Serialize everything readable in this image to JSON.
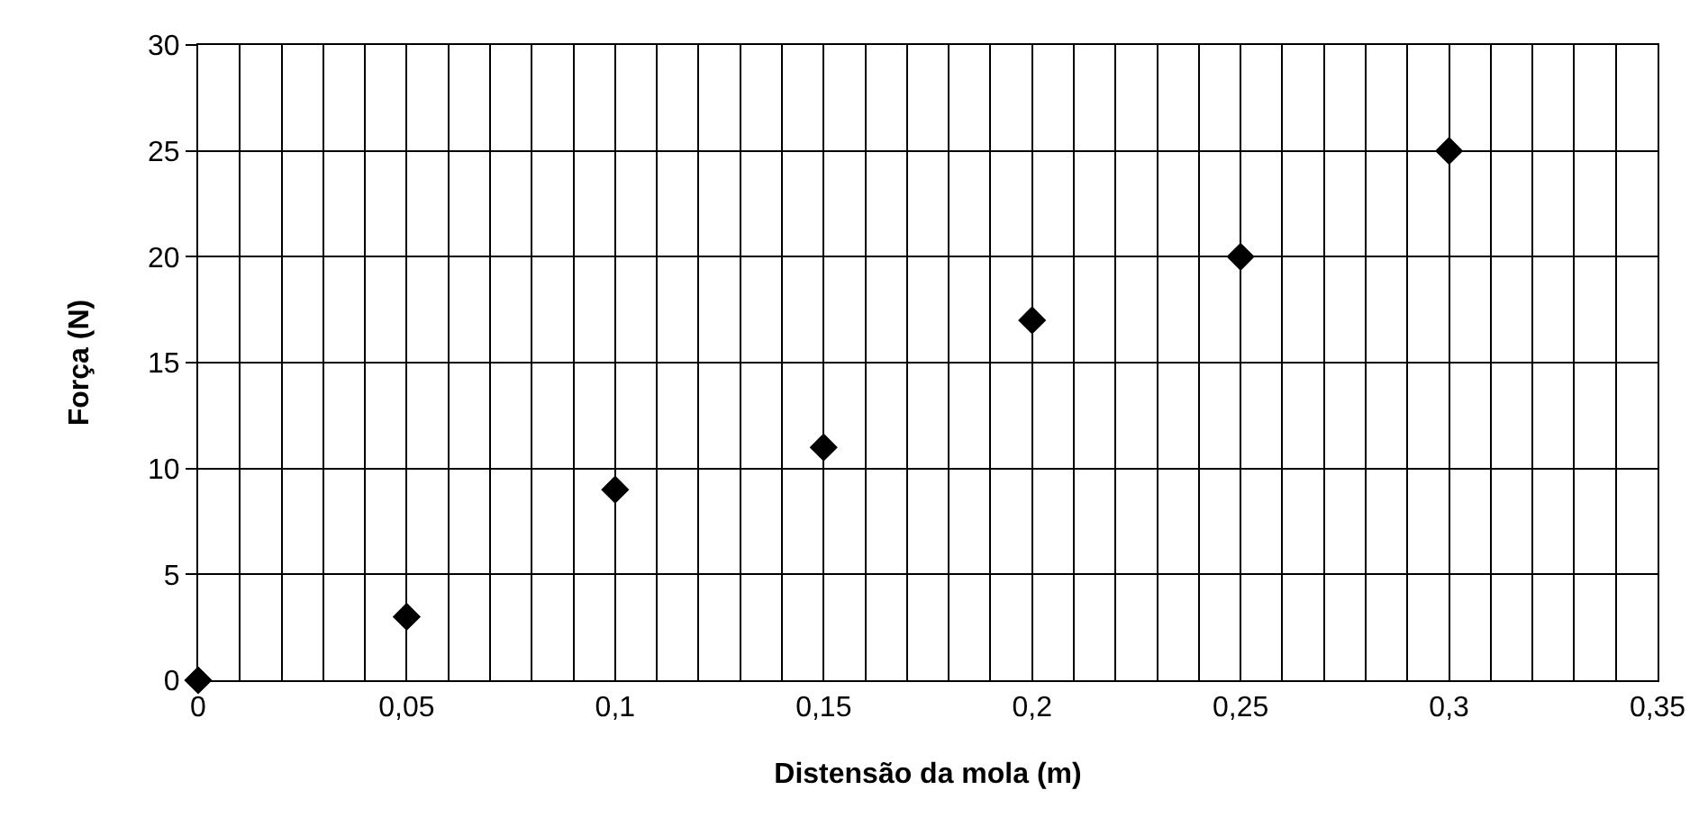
{
  "chart_data": {
    "type": "scatter",
    "xlabel": "Distensão da mola (m)",
    "ylabel": "Força (N)",
    "x": [
      0,
      0.05,
      0.1,
      0.15,
      0.2,
      0.25,
      0.3
    ],
    "values": [
      0,
      3,
      9,
      11,
      17,
      20,
      25
    ],
    "color": "#000000",
    "marker": "diamond",
    "grid": true,
    "xlim": [
      0,
      0.35
    ],
    "xticks": [
      0,
      {
        "value": 0.01,
        "label": null
      },
      {
        "value": 0.02,
        "label": null
      },
      {
        "value": 0.03,
        "label": null
      },
      {
        "value": 0.04,
        "label": null
      },
      {
        "value": 0.05,
        "label": "0,05"
      },
      {
        "value": 0.06,
        "label": null
      },
      {
        "value": 0.07,
        "label": null
      },
      {
        "value": 0.08,
        "label": null
      },
      {
        "value": 0.09,
        "label": null
      },
      {
        "value": 0.1,
        "label": "0,1"
      },
      {
        "value": 0.11,
        "label": null
      },
      {
        "value": 0.12,
        "label": null
      },
      {
        "value": 0.13,
        "label": null
      },
      {
        "value": 0.14,
        "label": null
      },
      {
        "value": 0.15,
        "label": "0,15"
      },
      {
        "value": 0.16,
        "label": null
      },
      {
        "value": 0.17,
        "label": null
      },
      {
        "value": 0.18,
        "label": null
      },
      {
        "value": 0.19,
        "label": null
      },
      {
        "value": 0.2,
        "label": "0,2"
      },
      {
        "value": 0.21,
        "label": null
      },
      {
        "value": 0.22,
        "label": null
      },
      {
        "value": 0.23,
        "label": null
      },
      {
        "value": 0.24,
        "label": null
      },
      {
        "value": 0.25,
        "label": "0,25"
      },
      {
        "value": 0.26,
        "label": null
      },
      {
        "value": 0.27,
        "label": null
      },
      {
        "value": 0.28,
        "label": null
      },
      {
        "value": 0.29,
        "label": null
      },
      {
        "value": 0.3,
        "label": "0,3"
      },
      {
        "value": 0.31,
        "label": null
      },
      {
        "value": 0.32,
        "label": null
      },
      {
        "value": 0.33,
        "label": null
      },
      {
        "value": 0.34,
        "label": null
      },
      {
        "value": 0.35,
        "label": "0,35"
      }
    ],
    "ylim": [
      0,
      30
    ],
    "yticks": [
      0,
      5,
      10,
      15,
      20,
      25,
      30
    ]
  }
}
